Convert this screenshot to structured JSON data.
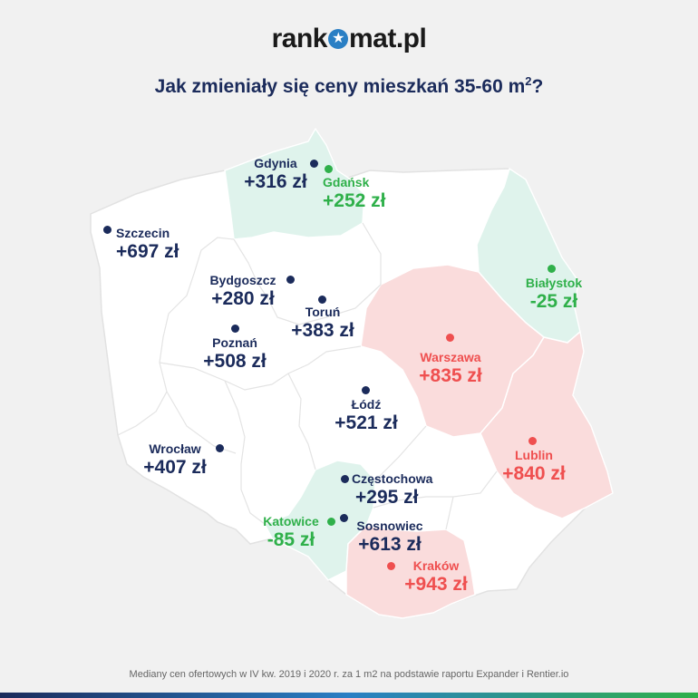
{
  "logo": {
    "part1": "rank",
    "part2": "mat.pl",
    "icon": "star-icon"
  },
  "title": {
    "text": "Jak zmieniały się ceny mieszkań 35-60 m",
    "sup": "2",
    "end": "?"
  },
  "colors": {
    "navy": "#1b2b5b",
    "green": "#2fb04a",
    "red": "#ef4f4f",
    "green_region": "#dff3ec",
    "red_region": "#fadcdc"
  },
  "cities": [
    {
      "id": "gdynia",
      "name": "Gdynia",
      "value": "+316 zł",
      "color": "navy"
    },
    {
      "id": "gdansk",
      "name": "Gdańsk",
      "value": "+252 zł",
      "color": "green"
    },
    {
      "id": "szczecin",
      "name": "Szczecin",
      "value": "+697 zł",
      "color": "navy"
    },
    {
      "id": "bydgoszcz",
      "name": "Bydgoszcz",
      "value": "+280 zł",
      "color": "navy"
    },
    {
      "id": "torun",
      "name": "Toruń",
      "value": "+383 zł",
      "color": "navy"
    },
    {
      "id": "bialystok",
      "name": "Białystok",
      "value": "-25 zł",
      "color": "green"
    },
    {
      "id": "poznan",
      "name": "Poznań",
      "value": "+508 zł",
      "color": "navy"
    },
    {
      "id": "warszawa",
      "name": "Warszawa",
      "value": "+835 zł",
      "color": "red"
    },
    {
      "id": "lodz",
      "name": "Łódź",
      "value": "+521 zł",
      "color": "navy"
    },
    {
      "id": "wroclaw",
      "name": "Wrocław",
      "value": "+407 zł",
      "color": "navy"
    },
    {
      "id": "lublin",
      "name": "Lublin",
      "value": "+840 zł",
      "color": "red"
    },
    {
      "id": "czestochowa",
      "name": "Częstochowa",
      "value": "+295 zł",
      "color": "navy"
    },
    {
      "id": "katowice",
      "name": "Katowice",
      "value": "-85 zł",
      "color": "green"
    },
    {
      "id": "sosnowiec",
      "name": "Sosnowiec",
      "value": "+613 zł",
      "color": "navy"
    },
    {
      "id": "krakow",
      "name": "Kraków",
      "value": "+943 zł",
      "color": "red"
    }
  ],
  "footer": "Mediany cen ofertowych w IV kw. 2019 i 2020 r. za 1 m2 na podstawie raportu Expander i Rentier.io"
}
